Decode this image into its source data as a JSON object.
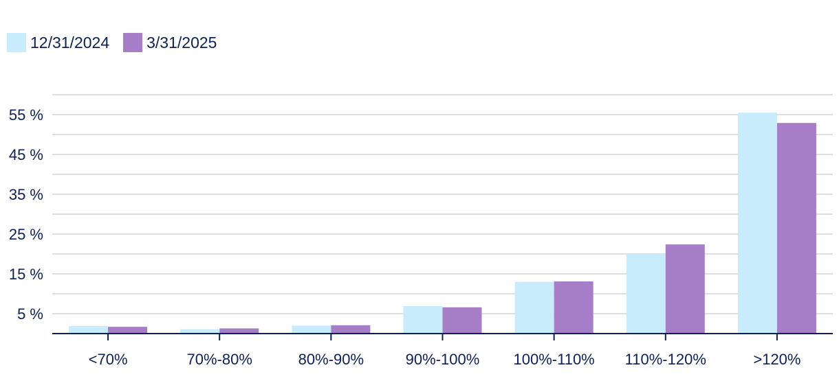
{
  "chart_data": {
    "type": "bar",
    "title": "",
    "xlabel": "",
    "ylabel": "",
    "categories": [
      "<70%",
      "70%-80%",
      "80%-90%",
      "90%-100%",
      "100%-110%",
      "110%-120%",
      ">120%"
    ],
    "series": [
      {
        "name": "12/31/2024",
        "color": "#c9ecfc",
        "values": [
          1.9,
          1.1,
          2.0,
          6.9,
          13.0,
          20.0,
          55.5
        ]
      },
      {
        "name": "3/31/2025",
        "color": "#a67ec8",
        "values": [
          1.7,
          1.3,
          2.1,
          6.6,
          13.1,
          22.4,
          52.9
        ]
      }
    ],
    "ylim": [
      0,
      60
    ],
    "yticks": [
      5,
      15,
      25,
      35,
      45,
      55
    ],
    "ytick_labels": [
      "5 %",
      "15 %",
      "25 %",
      "35 %",
      "45 %",
      "55 %"
    ],
    "grid": true,
    "legend_position": "top-left",
    "axis_color": "#0c2057",
    "grid_color": "#d4d4d4"
  }
}
